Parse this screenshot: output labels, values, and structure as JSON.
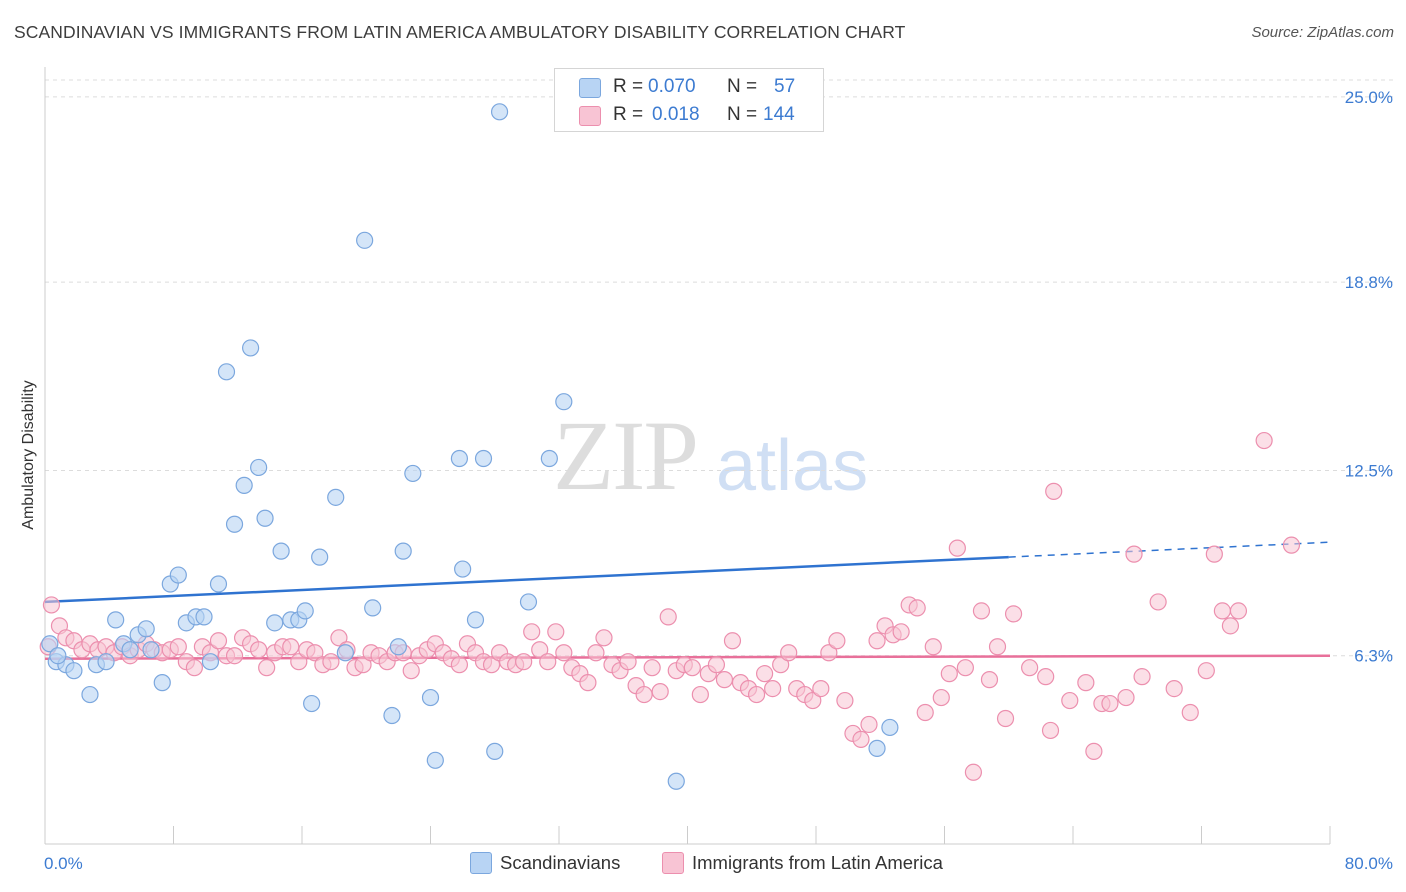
{
  "header": {
    "title": "SCANDINAVIAN VS IMMIGRANTS FROM LATIN AMERICA AMBULATORY DISABILITY CORRELATION CHART",
    "source": "Source: ZipAtlas.com"
  },
  "watermark": {
    "zip": "ZIP",
    "atlas": "atlas"
  },
  "legend": {
    "rows": [
      {
        "r_label": "R =",
        "r_value": "0.070",
        "n_label": "N =",
        "n_value": "57"
      },
      {
        "r_label": "R =",
        "r_value": "0.018",
        "n_label": "N =",
        "n_value": "144"
      }
    ]
  },
  "bottom_legend": {
    "series_a": "Scandinavians",
    "series_b": "Immigrants from Latin America"
  },
  "colors": {
    "blue_fill": "#b8d4f4",
    "blue_stroke": "#7ba7de",
    "blue_line": "#2f73d0",
    "pink_fill": "#f8c4d4",
    "pink_stroke": "#ec8fae",
    "pink_line": "#e8709a",
    "tick_label": "#3c7bd1",
    "grid": "#dcdcdc"
  },
  "chart_data": {
    "type": "scatter",
    "title": "SCANDINAVIAN VS IMMIGRANTS FROM LATIN AMERICA AMBULATORY DISABILITY CORRELATION CHART",
    "xlabel": "",
    "ylabel": "Ambulatory Disability",
    "xlim": [
      0,
      80
    ],
    "ylim": [
      0,
      26
    ],
    "x_tick_labels": [
      "0.0%",
      "80.0%"
    ],
    "y_ticks": [
      6.3,
      12.5,
      18.8,
      25.0
    ],
    "y_tick_labels": [
      "6.3%",
      "12.5%",
      "18.8%",
      "25.0%"
    ],
    "grid": "horizontal dashed",
    "legend_position": "top-center",
    "series": [
      {
        "name": "Scandinavians",
        "color": "#b8d4f4",
        "R": 0.07,
        "N": 57,
        "trend": {
          "x": [
            0,
            60
          ],
          "y": [
            8.1,
            9.6
          ],
          "dashed_to": [
            80,
            10.1
          ]
        },
        "points": [
          [
            0.3,
            6.7
          ],
          [
            0.7,
            6.1
          ],
          [
            1.3,
            6.0
          ],
          [
            1.8,
            5.8
          ],
          [
            2.8,
            5.0
          ],
          [
            3.2,
            6.0
          ],
          [
            3.8,
            6.1
          ],
          [
            4.4,
            7.5
          ],
          [
            4.9,
            6.7
          ],
          [
            5.3,
            6.5
          ],
          [
            5.8,
            7.0
          ],
          [
            6.3,
            7.2
          ],
          [
            6.6,
            6.5
          ],
          [
            7.3,
            5.4
          ],
          [
            7.8,
            8.7
          ],
          [
            8.3,
            9.0
          ],
          [
            8.8,
            7.4
          ],
          [
            9.4,
            7.6
          ],
          [
            9.9,
            7.6
          ],
          [
            10.3,
            6.1
          ],
          [
            10.8,
            8.7
          ],
          [
            11.3,
            15.8
          ],
          [
            11.8,
            10.7
          ],
          [
            12.4,
            12.0
          ],
          [
            12.8,
            16.6
          ],
          [
            13.3,
            12.6
          ],
          [
            13.7,
            10.9
          ],
          [
            14.3,
            7.4
          ],
          [
            14.7,
            9.8
          ],
          [
            15.3,
            7.5
          ],
          [
            15.8,
            7.5
          ],
          [
            16.2,
            7.8
          ],
          [
            16.6,
            4.7
          ],
          [
            17.1,
            9.6
          ],
          [
            18.1,
            11.6
          ],
          [
            18.7,
            6.4
          ],
          [
            19.9,
            20.2
          ],
          [
            20.4,
            7.9
          ],
          [
            21.6,
            4.3
          ],
          [
            22.0,
            6.6
          ],
          [
            22.3,
            9.8
          ],
          [
            22.9,
            12.4
          ],
          [
            24.0,
            4.9
          ],
          [
            24.3,
            2.8
          ],
          [
            25.8,
            12.9
          ],
          [
            26.0,
            9.2
          ],
          [
            26.8,
            7.5
          ],
          [
            27.3,
            12.9
          ],
          [
            28.0,
            3.1
          ],
          [
            28.3,
            24.5
          ],
          [
            30.1,
            8.1
          ],
          [
            31.4,
            12.9
          ],
          [
            32.3,
            14.8
          ],
          [
            39.3,
            2.1
          ],
          [
            51.8,
            3.2
          ],
          [
            52.6,
            3.9
          ],
          [
            0.8,
            6.3
          ]
        ]
      },
      {
        "name": "Immigrants from Latin America",
        "color": "#f8c4d4",
        "R": 0.018,
        "N": 144,
        "trend": {
          "x": [
            0,
            80
          ],
          "y": [
            6.2,
            6.3
          ]
        },
        "points": [
          [
            0.4,
            8.0
          ],
          [
            0.9,
            7.3
          ],
          [
            1.3,
            6.9
          ],
          [
            1.8,
            6.8
          ],
          [
            2.3,
            6.5
          ],
          [
            2.8,
            6.7
          ],
          [
            3.3,
            6.5
          ],
          [
            3.8,
            6.6
          ],
          [
            4.3,
            6.4
          ],
          [
            4.8,
            6.6
          ],
          [
            5.3,
            6.3
          ],
          [
            5.8,
            6.5
          ],
          [
            6.3,
            6.7
          ],
          [
            6.8,
            6.5
          ],
          [
            7.3,
            6.4
          ],
          [
            7.8,
            6.5
          ],
          [
            8.3,
            6.6
          ],
          [
            8.8,
            6.1
          ],
          [
            9.3,
            5.9
          ],
          [
            9.8,
            6.6
          ],
          [
            10.3,
            6.4
          ],
          [
            10.8,
            6.8
          ],
          [
            11.3,
            6.3
          ],
          [
            11.8,
            6.3
          ],
          [
            12.3,
            6.9
          ],
          [
            12.8,
            6.7
          ],
          [
            13.3,
            6.5
          ],
          [
            13.8,
            5.9
          ],
          [
            14.3,
            6.4
          ],
          [
            14.8,
            6.6
          ],
          [
            15.3,
            6.6
          ],
          [
            15.8,
            6.1
          ],
          [
            16.3,
            6.5
          ],
          [
            16.8,
            6.4
          ],
          [
            17.3,
            6.0
          ],
          [
            17.8,
            6.1
          ],
          [
            18.3,
            6.9
          ],
          [
            18.8,
            6.5
          ],
          [
            19.3,
            5.9
          ],
          [
            19.8,
            6.0
          ],
          [
            20.3,
            6.4
          ],
          [
            20.8,
            6.3
          ],
          [
            21.3,
            6.1
          ],
          [
            21.8,
            6.4
          ],
          [
            22.3,
            6.4
          ],
          [
            22.8,
            5.8
          ],
          [
            23.3,
            6.3
          ],
          [
            23.8,
            6.5
          ],
          [
            24.3,
            6.7
          ],
          [
            24.8,
            6.4
          ],
          [
            25.3,
            6.2
          ],
          [
            25.8,
            6.0
          ],
          [
            26.3,
            6.7
          ],
          [
            26.8,
            6.4
          ],
          [
            27.3,
            6.1
          ],
          [
            27.8,
            6.0
          ],
          [
            28.3,
            6.4
          ],
          [
            28.8,
            6.1
          ],
          [
            29.3,
            6.0
          ],
          [
            29.8,
            6.1
          ],
          [
            30.3,
            7.1
          ],
          [
            30.8,
            6.5
          ],
          [
            31.3,
            6.1
          ],
          [
            31.8,
            7.1
          ],
          [
            32.3,
            6.4
          ],
          [
            32.8,
            5.9
          ],
          [
            33.3,
            5.7
          ],
          [
            33.8,
            5.4
          ],
          [
            34.3,
            6.4
          ],
          [
            34.8,
            6.9
          ],
          [
            35.3,
            6.0
          ],
          [
            35.8,
            5.8
          ],
          [
            36.3,
            6.1
          ],
          [
            36.8,
            5.3
          ],
          [
            37.3,
            5.0
          ],
          [
            37.8,
            5.9
          ],
          [
            38.3,
            5.1
          ],
          [
            38.8,
            7.6
          ],
          [
            39.3,
            5.8
          ],
          [
            39.8,
            6.0
          ],
          [
            40.3,
            5.9
          ],
          [
            40.8,
            5.0
          ],
          [
            41.3,
            5.7
          ],
          [
            41.8,
            6.0
          ],
          [
            42.3,
            5.5
          ],
          [
            42.8,
            6.8
          ],
          [
            43.3,
            5.4
          ],
          [
            43.8,
            5.2
          ],
          [
            44.3,
            5.0
          ],
          [
            44.8,
            5.7
          ],
          [
            45.3,
            5.2
          ],
          [
            45.8,
            6.0
          ],
          [
            46.3,
            6.4
          ],
          [
            46.8,
            5.2
          ],
          [
            47.3,
            5.0
          ],
          [
            47.8,
            4.8
          ],
          [
            48.3,
            5.2
          ],
          [
            48.8,
            6.4
          ],
          [
            49.3,
            6.8
          ],
          [
            49.8,
            4.8
          ],
          [
            50.3,
            3.7
          ],
          [
            50.8,
            3.5
          ],
          [
            51.3,
            4.0
          ],
          [
            51.8,
            6.8
          ],
          [
            52.3,
            7.3
          ],
          [
            52.8,
            7.0
          ],
          [
            53.3,
            7.1
          ],
          [
            53.8,
            8.0
          ],
          [
            54.3,
            7.9
          ],
          [
            54.8,
            4.4
          ],
          [
            55.3,
            6.6
          ],
          [
            55.8,
            4.9
          ],
          [
            56.3,
            5.7
          ],
          [
            56.8,
            9.9
          ],
          [
            57.3,
            5.9
          ],
          [
            57.8,
            2.4
          ],
          [
            58.3,
            7.8
          ],
          [
            58.8,
            5.5
          ],
          [
            59.3,
            6.6
          ],
          [
            59.8,
            4.2
          ],
          [
            60.3,
            7.7
          ],
          [
            61.3,
            5.9
          ],
          [
            62.3,
            5.6
          ],
          [
            62.6,
            3.8
          ],
          [
            62.8,
            11.8
          ],
          [
            63.8,
            4.8
          ],
          [
            64.8,
            5.4
          ],
          [
            65.3,
            3.1
          ],
          [
            65.8,
            4.7
          ],
          [
            66.3,
            4.7
          ],
          [
            67.3,
            4.9
          ],
          [
            67.8,
            9.7
          ],
          [
            68.3,
            5.6
          ],
          [
            69.3,
            8.1
          ],
          [
            70.3,
            5.2
          ],
          [
            71.3,
            4.4
          ],
          [
            72.3,
            5.8
          ],
          [
            72.8,
            9.7
          ],
          [
            73.3,
            7.8
          ],
          [
            73.8,
            7.3
          ],
          [
            74.3,
            7.8
          ],
          [
            75.9,
            13.5
          ],
          [
            77.6,
            10.0
          ],
          [
            0.2,
            6.6
          ]
        ]
      }
    ]
  }
}
